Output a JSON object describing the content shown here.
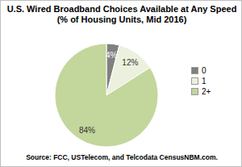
{
  "chart_data": {
    "type": "pie",
    "title": "U.S. Wired Broadband Choices Available at Any Speed",
    "subtitle": "(% of Housing Units, Mid 2016)",
    "categories": [
      "0",
      "1",
      "2+"
    ],
    "values": [
      4,
      12,
      84
    ],
    "value_labels": [
      "4%",
      "12%",
      "84%"
    ],
    "colors": [
      "#808080",
      "#ebf1de",
      "#c3d69b"
    ],
    "data_labels": true,
    "legend": "right",
    "annotations": [
      "Source: FCC, USTelecom, and Telcodata CensusNBM.com."
    ]
  }
}
